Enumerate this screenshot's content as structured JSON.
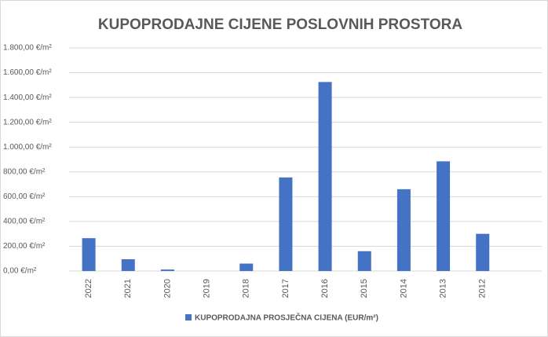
{
  "chart_data": {
    "type": "bar",
    "title": "KUPOPRODAJNE CIJENE POSLOVNIH PROSTORA",
    "categories": [
      "2022",
      "2021",
      "2020",
      "2019",
      "2018",
      "2017",
      "2016",
      "2015",
      "2014",
      "2013",
      "2012",
      null
    ],
    "series": [
      {
        "name": "KUPOPRODAJNA PROSJEČNA CIJENA (EUR/m²)",
        "color": "#4472c4",
        "values": [
          265,
          95,
          12,
          0,
          60,
          755,
          1525,
          160,
          660,
          885,
          300,
          null
        ]
      }
    ],
    "ylim": [
      0,
      1800
    ],
    "yticks": [
      {
        "value": 0,
        "label": "0,00 €/m²"
      },
      {
        "value": 200,
        "label": "200,00 €/m²"
      },
      {
        "value": 400,
        "label": "400,00 €/m²"
      },
      {
        "value": 600,
        "label": "600,00 €/m²"
      },
      {
        "value": 800,
        "label": "800,00 €/m²"
      },
      {
        "value": 1000,
        "label": "1.000,00 €/m²"
      },
      {
        "value": 1200,
        "label": "1.200,00 €/m²"
      },
      {
        "value": 1400,
        "label": "1.400,00 €/m²"
      },
      {
        "value": 1600,
        "label": "1.600,00 €/m²"
      },
      {
        "value": 1800,
        "label": "1.800,00 €/m²"
      }
    ],
    "grid": true,
    "legend": "bottom"
  }
}
